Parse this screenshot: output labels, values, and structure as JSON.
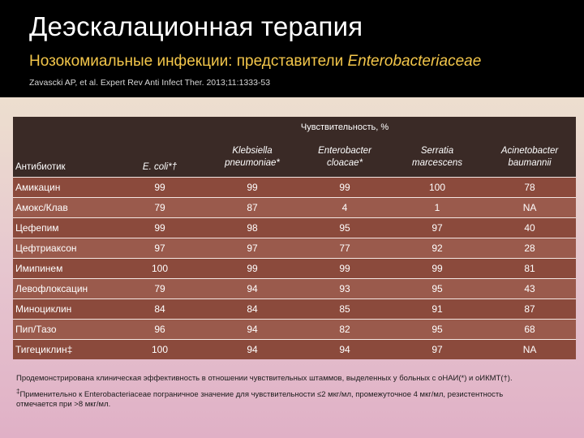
{
  "slide": {
    "title": "Деэскалационная терапия",
    "subtitle_lead": "Нозокомиальные инфекции: представители ",
    "subtitle_family": "Enterobacteriaceae",
    "citation": "Zavascki AP, et al. Expert Rev Anti Infect Ther. 2013;11:1333-53"
  },
  "table": {
    "group_header": "Чувствительность, %",
    "antibiotic_header": "Антибиотик",
    "organisms": [
      {
        "line1": "E. coli*†",
        "line2": ""
      },
      {
        "line1": "Klebsiella",
        "line2": "pneumoniae*"
      },
      {
        "line1": "Enterobacter",
        "line2": "cloacae*"
      },
      {
        "line1": "Serratia",
        "line2": "marcescens"
      },
      {
        "line1": "Acinetobacter",
        "line2": "baumannii"
      }
    ],
    "rows": [
      {
        "antibiotic": "Амикацин",
        "values": [
          "99",
          "99",
          "99",
          "100",
          "78"
        ]
      },
      {
        "antibiotic": "Амокс/Клав",
        "values": [
          "79",
          "87",
          "4",
          "1",
          "NA"
        ]
      },
      {
        "antibiotic": "Цефепим",
        "values": [
          "99",
          "98",
          "95",
          "97",
          "40"
        ]
      },
      {
        "antibiotic": "Цефтриаксон",
        "values": [
          "97",
          "97",
          "77",
          "92",
          "28"
        ]
      },
      {
        "antibiotic": "Имипинем",
        "values": [
          "100",
          "99",
          "99",
          "99",
          "81"
        ]
      },
      {
        "antibiotic": "Левофлоксацин",
        "values": [
          "79",
          "94",
          "93",
          "95",
          "43"
        ]
      },
      {
        "antibiotic": "Миноциклин",
        "values": [
          "84",
          "84",
          "85",
          "91",
          "87"
        ]
      },
      {
        "antibiotic": "Пип/Тазо",
        "values": [
          "96",
          "94",
          "82",
          "95",
          "68"
        ]
      },
      {
        "antibiotic": "Тигециклин‡",
        "values": [
          "100",
          "94",
          "94",
          "97",
          "NA"
        ]
      }
    ]
  },
  "footnotes": {
    "note1": "Продемонстрирована клиническая эффективность в отношении чувствительных штаммов, выделенных у больных с оНАИ(*) и оИКМТ(†).",
    "note2_mark": "‡",
    "note2": "Применительно к Enterobacteriaceae пограничное значение для чувствительности ≤2 мкг/мл, промежуточное 4 мкг/мл, резистентность отмечается при >8 мкг/мл."
  }
}
